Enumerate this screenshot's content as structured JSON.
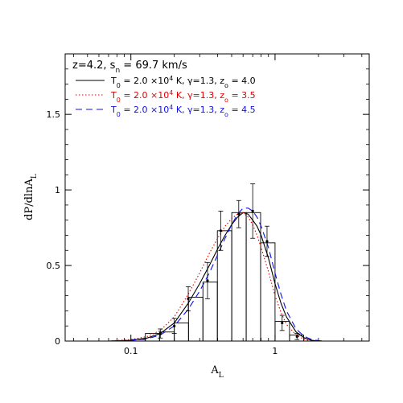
{
  "chart_data": {
    "type": "line",
    "title": "z=4.2, s",
    "title_sub": "n",
    "title_tail": " = 69.7 km/s",
    "xlabel": "A",
    "xlabel_sub": "L",
    "ylabel": "dP/dlnA",
    "ylabel_sub": "L",
    "x_scale": "log",
    "xlim": [
      0.035,
      4.5
    ],
    "ylim": [
      0,
      1.9
    ],
    "x_ticks": [
      {
        "value": 0.1,
        "label": "0.1"
      },
      {
        "value": 1,
        "label": "1"
      }
    ],
    "y_ticks": [
      {
        "value": 0,
        "label": "0"
      },
      {
        "value": 0.5,
        "label": "0.5"
      },
      {
        "value": 1,
        "label": "1"
      },
      {
        "value": 1.5,
        "label": "1.5"
      }
    ],
    "grid": false,
    "legend_position": "top-left",
    "histogram": {
      "bin_edges": [
        0.1,
        0.126,
        0.158,
        0.2,
        0.251,
        0.316,
        0.398,
        0.501,
        0.631,
        0.794,
        1.0,
        1.26,
        1.58,
        2.0
      ],
      "values": [
        0.01,
        0.05,
        0.06,
        0.12,
        0.29,
        0.39,
        0.73,
        0.85,
        0.85,
        0.65,
        0.13,
        0.04,
        0.0
      ]
    },
    "data_points": [
      {
        "x": 0.16,
        "y": 0.05,
        "err": 0.03
      },
      {
        "x": 0.2,
        "y": 0.1,
        "err": 0.05
      },
      {
        "x": 0.25,
        "y": 0.28,
        "err": 0.08
      },
      {
        "x": 0.34,
        "y": 0.4,
        "err": 0.12
      },
      {
        "x": 0.42,
        "y": 0.73,
        "err": 0.13
      },
      {
        "x": 0.56,
        "y": 0.84,
        "err": 0.09
      },
      {
        "x": 0.7,
        "y": 0.86,
        "err": 0.18
      },
      {
        "x": 0.88,
        "y": 0.66,
        "err": 0.1
      },
      {
        "x": 1.12,
        "y": 0.12,
        "err": 0.05
      },
      {
        "x": 1.42,
        "y": 0.03,
        "err": 0.02
      }
    ],
    "series": [
      {
        "name_parts": [
          "T",
          "0",
          " = 2.0 ×10",
          "4",
          " K, γ=1.3, z",
          "o",
          " = 4.0"
        ],
        "color": "#000000",
        "dash": "solid",
        "x": [
          0.07,
          0.1,
          0.13,
          0.16,
          0.2,
          0.25,
          0.3,
          0.35,
          0.4,
          0.45,
          0.5,
          0.55,
          0.6,
          0.65,
          0.7,
          0.75,
          0.8,
          0.9,
          1.0,
          1.1,
          1.2,
          1.4,
          1.6,
          1.8,
          2.0
        ],
        "y": [
          0.0,
          0.005,
          0.02,
          0.05,
          0.12,
          0.25,
          0.38,
          0.5,
          0.61,
          0.7,
          0.77,
          0.82,
          0.85,
          0.84,
          0.8,
          0.76,
          0.7,
          0.55,
          0.38,
          0.25,
          0.16,
          0.06,
          0.02,
          0.005,
          0.0
        ]
      },
      {
        "name_parts": [
          "T",
          "0",
          " = 2.0 ×10",
          "4",
          " K, γ=1.3, z",
          "o",
          " = 3.5"
        ],
        "color": "#e00000",
        "dash": "dotted",
        "x": [
          0.07,
          0.1,
          0.13,
          0.16,
          0.2,
          0.25,
          0.3,
          0.35,
          0.4,
          0.45,
          0.5,
          0.55,
          0.6,
          0.65,
          0.7,
          0.75,
          0.8,
          0.9,
          1.0,
          1.1,
          1.2,
          1.4,
          1.6,
          1.8
        ],
        "y": [
          0.0,
          0.01,
          0.03,
          0.07,
          0.16,
          0.31,
          0.45,
          0.58,
          0.68,
          0.76,
          0.81,
          0.84,
          0.85,
          0.82,
          0.77,
          0.7,
          0.62,
          0.46,
          0.3,
          0.19,
          0.11,
          0.04,
          0.01,
          0.0
        ]
      },
      {
        "name_parts": [
          "T",
          "0",
          " = 2.0 ×10",
          "4",
          " K, γ=1.3, z",
          "o",
          " = 4.5"
        ],
        "color": "#1010e0",
        "dash": "dashed",
        "x": [
          0.07,
          0.1,
          0.13,
          0.16,
          0.2,
          0.25,
          0.3,
          0.35,
          0.4,
          0.45,
          0.5,
          0.55,
          0.6,
          0.65,
          0.7,
          0.75,
          0.8,
          0.9,
          1.0,
          1.1,
          1.2,
          1.4,
          1.6,
          1.8,
          2.0,
          2.2
        ],
        "y": [
          0.0,
          0.004,
          0.015,
          0.04,
          0.1,
          0.21,
          0.33,
          0.45,
          0.57,
          0.68,
          0.77,
          0.84,
          0.88,
          0.88,
          0.86,
          0.82,
          0.76,
          0.62,
          0.45,
          0.31,
          0.2,
          0.08,
          0.03,
          0.01,
          0.003,
          0.0
        ]
      }
    ]
  }
}
